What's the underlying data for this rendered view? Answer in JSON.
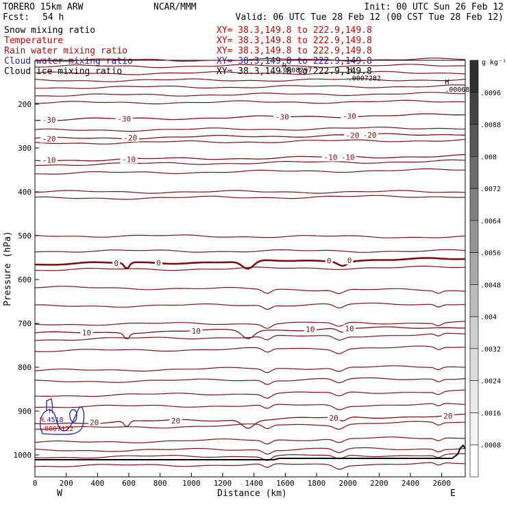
{
  "header": {
    "model": "TORERO  15km ARW",
    "center": "NCAR/MMM",
    "init": "Init: 00 UTC Sun 26 Feb 12",
    "fcst_label": "Fcst:",
    "fcst_value": "54 h",
    "valid": "Valid: 06 UTC Tue 28 Feb 12 (00 CST Tue 28 Feb 12)"
  },
  "legend": [
    {
      "label": "Snow mixing ratio",
      "xy": "XY=  38.3,149.8 to 222.9,149.8",
      "color": "#000000",
      "xy_color": "#cc0000"
    },
    {
      "label": "Temperature",
      "xy": "XY=  38.3,149.8 to 222.9,149.8",
      "color": "#cc0000",
      "xy_color": "#cc0000"
    },
    {
      "label": "Rain water mixing ratio",
      "xy": "XY=  38.3,149.8 to 222.9,149.8",
      "color": "#cc0000",
      "xy_color": "#cc0000"
    },
    {
      "label": "Cloud water mixing ratio",
      "xy": "XY=  38.3,149.8 to 222.9,149.8",
      "color": "#1f1fb4",
      "xy_color": "#1f1fb4"
    },
    {
      "label": "Cloud ice mixing ratio",
      "xy": "XY=  38.3,149.8 to 222.9,149.8",
      "color": "#000000",
      "xy_color": "#000000"
    }
  ],
  "colorbar": {
    "unit": "g kg⁻¹",
    "labels": [
      ".0096",
      ".0088",
      ".008",
      ".0072",
      ".0064",
      ".0056",
      ".0048",
      ".004",
      ".0032",
      ".0024",
      ".0016",
      ".0008"
    ],
    "levels": [
      0.0096,
      0.0088,
      0.008,
      0.0072,
      0.0064,
      0.0056,
      0.0048,
      0.004,
      0.0032,
      0.0024,
      0.0016,
      0.0008
    ],
    "colors": [
      "#303030",
      "#444444",
      "#585858",
      "#6c6c6c",
      "#808080",
      "#949494",
      "#a8a8a8",
      "#bcbcbc",
      "#cecece",
      "#dddddd",
      "#e9e9e9",
      "#f3f3f3",
      "#ffffff"
    ]
  },
  "chart_data": {
    "type": "line",
    "xlabel": "Distance (km)",
    "ylabel": "Pressure (hPa)",
    "xlim": [
      0,
      2750
    ],
    "ylim": [
      1050,
      100
    ],
    "x_ticks": [
      "0",
      "200",
      "400",
      "600",
      "800",
      "1000",
      "1200",
      "1400",
      "1600",
      "1800",
      "2000",
      "2200",
      "2400",
      "2600"
    ],
    "x_tick_values": [
      0,
      200,
      400,
      600,
      800,
      1000,
      1200,
      1400,
      1600,
      1800,
      2000,
      2200,
      2400,
      2600
    ],
    "y_ticks": [
      "200",
      "300",
      "400",
      "500",
      "600",
      "700",
      "800",
      "900",
      "1000"
    ],
    "y_tick_values": [
      200,
      300,
      400,
      500,
      600,
      700,
      800,
      900,
      1000
    ],
    "end_labels": {
      "left": "W",
      "right": "E"
    },
    "temperature_contours": [
      {
        "level": "-30",
        "value": -30,
        "labels_km": [
          90,
          570,
          1580,
          2010
        ]
      },
      {
        "level": "-20",
        "value": -20,
        "labels_km": [
          90,
          610,
          2030,
          2140
        ]
      },
      {
        "level": "-10",
        "value": -10,
        "labels_km": [
          90,
          600,
          1890,
          2000
        ]
      },
      {
        "level": "0",
        "value": 0,
        "labels_km": [
          520,
          790,
          1880,
          2010
        ]
      },
      {
        "level": "10",
        "value": 10,
        "labels_km": [
          330,
          1030,
          1760,
          2010
        ]
      },
      {
        "level": "20",
        "value": 20,
        "labels_km": [
          380,
          900,
          1910,
          2640
        ]
      }
    ],
    "annotations": [
      {
        "text": "H",
        "x_km": 1580,
        "p_hpa": 118,
        "color": "#000000"
      },
      {
        "text": ".0008297",
        "x_km": 1560,
        "p_hpa": 127,
        "color": "#000000"
      },
      {
        "text": "H",
        "x_km": 2000,
        "p_hpa": 127,
        "color": "#000000"
      },
      {
        "text": ".0007282",
        "x_km": 2000,
        "p_hpa": 146,
        "color": "#000000"
      },
      {
        "text": "H",
        "x_km": 2620,
        "p_hpa": 155,
        "color": "#000000"
      },
      {
        "text": ".00068",
        "x_km": 2620,
        "p_hpa": 172,
        "color": "#000000"
      },
      {
        "text": "H",
        "x_km": 90,
        "p_hpa": 905,
        "color": "#1f1fb4"
      },
      {
        "text": "H",
        "x_km": 30,
        "p_hpa": 925,
        "color": "#cc0000"
      },
      {
        "text": ".4518",
        "x_km": 50,
        "p_hpa": 925,
        "color": "#1f1fb4"
      },
      {
        "text": ".0007122",
        "x_km": 35,
        "p_hpa": 945,
        "color": "#cc0000"
      }
    ]
  }
}
